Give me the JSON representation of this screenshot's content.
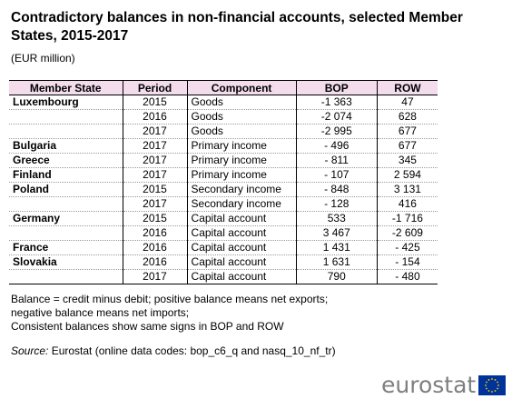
{
  "title": "Contradictory balances in non-financial accounts, selected Member States, 2015-2017",
  "subtitle": "(EUR million)",
  "table": {
    "headers": [
      "Member State",
      "Period",
      "Component",
      "BOP",
      "ROW"
    ],
    "rows": [
      [
        "Luxembourg",
        "2015",
        "Goods",
        "-1 363",
        "47"
      ],
      [
        "",
        "2016",
        "Goods",
        "-2 074",
        "628"
      ],
      [
        "",
        "2017",
        "Goods",
        "-2 995",
        "677"
      ],
      [
        "Bulgaria",
        "2017",
        "Primary income",
        "- 496",
        "677"
      ],
      [
        "Greece",
        "2017",
        "Primary income",
        "- 811",
        "345"
      ],
      [
        "Finland",
        "2017",
        "Primary income",
        "- 107",
        "2 594"
      ],
      [
        "Poland",
        "2015",
        "Secondary income",
        "- 848",
        "3 131"
      ],
      [
        "",
        "2017",
        "Secondary income",
        "- 128",
        "416"
      ],
      [
        "Germany",
        "2015",
        "Capital account",
        "533",
        "-1 716"
      ],
      [
        "",
        "2016",
        "Capital account",
        "3 467",
        "-2 609"
      ],
      [
        "France",
        "2016",
        "Capital account",
        "1 431",
        "- 425"
      ],
      [
        "Slovakia",
        "2016",
        "Capital account",
        "1 631",
        "- 154"
      ],
      [
        "",
        "2017",
        "Capital account",
        "790",
        "- 480"
      ]
    ]
  },
  "notes": [
    "Balance = credit minus debit; positive balance means net exports;",
    "negative balance means net imports;",
    "Consistent balances show same signs in BOP and ROW"
  ],
  "source": {
    "label": "Source:",
    "text": " Eurostat (online data codes: bop_c6_q and nasq_10_nf_tr)"
  },
  "logo": {
    "text": "eurostat",
    "flag_color": "#003399",
    "star_color": "#ffcc00"
  }
}
